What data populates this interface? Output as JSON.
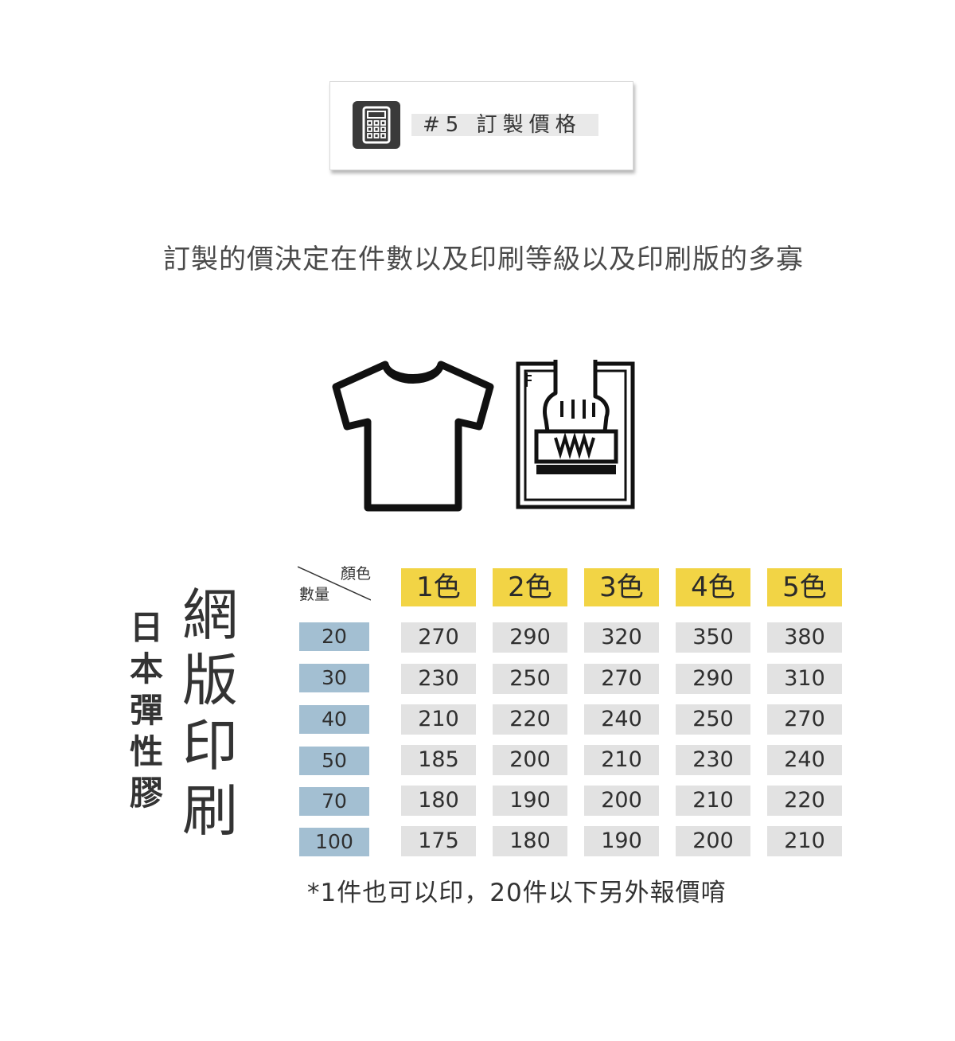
{
  "header": {
    "icon": "calculator-icon",
    "title": "#5 訂製價格"
  },
  "subtitle": "訂製的價決定在件數以及印刷等級以及印刷版的多寡",
  "icons": {
    "shirt": "tshirt-icon",
    "print": "screen-print-stamp-icon"
  },
  "side_labels": {
    "material": "日本彈性膠",
    "method": "網版印刷"
  },
  "price_table": {
    "corner_color_label": "顏色",
    "corner_quantity_label": "數量",
    "columns": [
      "1色",
      "2色",
      "3色",
      "4色",
      "5色"
    ],
    "rows": [
      {
        "qty": "20",
        "prices": [
          "270",
          "290",
          "320",
          "350",
          "380"
        ]
      },
      {
        "qty": "30",
        "prices": [
          "230",
          "250",
          "270",
          "290",
          "310"
        ]
      },
      {
        "qty": "40",
        "prices": [
          "210",
          "220",
          "240",
          "250",
          "270"
        ]
      },
      {
        "qty": "50",
        "prices": [
          "185",
          "200",
          "210",
          "230",
          "240"
        ]
      },
      {
        "qty": "70",
        "prices": [
          "180",
          "190",
          "200",
          "210",
          "220"
        ]
      },
      {
        "qty": "100",
        "prices": [
          "175",
          "180",
          "190",
          "200",
          "210"
        ]
      }
    ]
  },
  "footnote": "*1件也可以印，20件以下另外報價唷",
  "colors": {
    "column_header_bg": "#f2d445",
    "row_header_bg": "#a3bfd2",
    "cell_bg": "#e2e2e2"
  }
}
